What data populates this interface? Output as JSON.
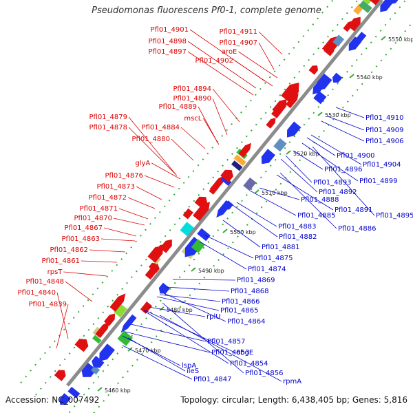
{
  "title": "Pseudomonas fluorescens Pf0-1, complete genome",
  "accession": "Accession: NC_007492",
  "summary": "Topology: circular; Length: 6,438,405 bp; Genes: 5,816",
  "colors": {
    "forward_label": "#dd0000",
    "reverse_label": "#0000cc",
    "backbone": "#8c8c8c",
    "dots": "#33aa33"
  },
  "kbp_ticks": [
    "5460 kbp",
    "5470 kbp",
    "5480 kbp",
    "5490 kbp",
    "5500 kbp",
    "5510 kbp",
    "5520 kbp",
    "5530 kbp",
    "5540 kbp",
    "5550 kbp"
  ],
  "forward_labels": [
    "Pfl01_4901",
    "Pfl01_4911",
    "Pfl01_4898",
    "Pfl01_4907",
    "Pfl01_4897",
    "aroE",
    "Pfl01_4902",
    "Pfl01_4894",
    "Pfl01_4890",
    "Pfl01_4889",
    "mscL",
    "Pfl01_4879",
    "Pfl01_4878",
    "Pfl01_4884",
    "Pfl01_4880",
    "glyA",
    "Pfl01_4876",
    "Pfl01_4873",
    "Pfl01_4872",
    "Pfl01_4871",
    "Pfl01_4870",
    "Pfl01_4867",
    "Pfl01_4863",
    "Pfl01_4862",
    "Pfl01_4861",
    "rpsT",
    "Pfl01_4848",
    "Pfl01_4840",
    "Pfl01_4839"
  ],
  "reverse_labels": [
    "Pfl01_4910",
    "Pfl01_4909",
    "Pfl01_4906",
    "Pfl01_4900",
    "Pfl01_4904",
    "Pfl01_4896",
    "Pfl01_4899",
    "Pfl01_4893",
    "Pfl01_4892",
    "Pfl01_4888",
    "Pfl01_4891",
    "Pfl01_4895",
    "Pfl01_4885",
    "Pfl01_4883",
    "Pfl01_4886",
    "Pfl01_4882",
    "Pfl01_4881",
    "Pfl01_4875",
    "Pfl01_4874",
    "Pfl01_4869",
    "Pfl01_4868",
    "Pfl01_4866",
    "Pfl01_4865",
    "rplU",
    "Pfl01_4864",
    "Pfl01_4857",
    "Pfl01_4853",
    "obgE",
    "lspA",
    "Pfl01_4854",
    "ileS",
    "Pfl01_4856",
    "Pfl01_4847",
    "rpmA"
  ]
}
